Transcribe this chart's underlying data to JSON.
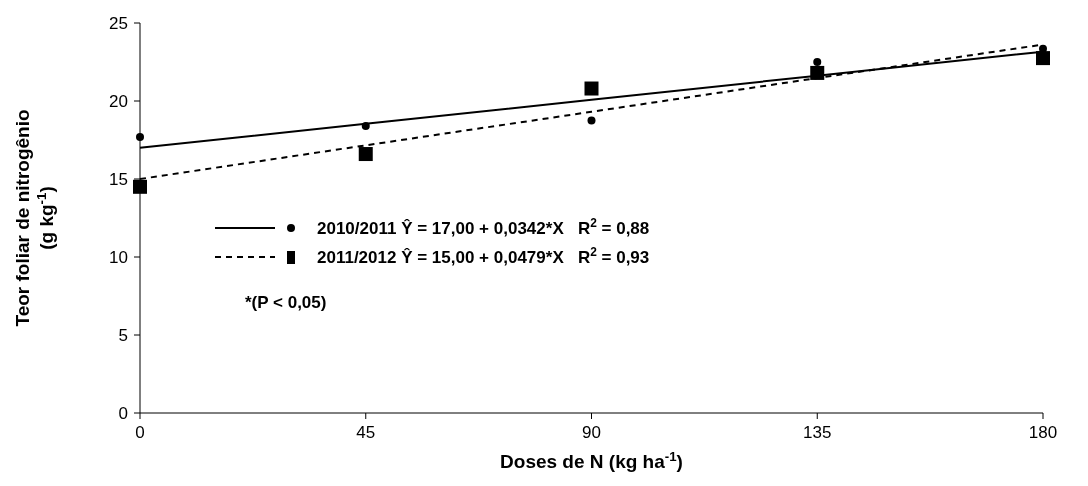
{
  "chart_data": {
    "type": "scatter",
    "xlabel": "Doses de N (kg ha$^{-1}$)",
    "ylabel": "Teor  foliar de nitrogênio\n(g kg$^{-1}$)",
    "xlim": [
      0,
      180
    ],
    "xticks": [
      0,
      45,
      90,
      135,
      180
    ],
    "ylim": [
      0,
      25
    ],
    "yticks": [
      0,
      5,
      10,
      15,
      20,
      25
    ],
    "grid": false,
    "legend": "left",
    "x": [
      0,
      45,
      90,
      135,
      180
    ],
    "series": [
      {
        "type": "scatter",
        "marker": "circle",
        "color": "#000000",
        "values": [
          17.7,
          18.4,
          18.75,
          22.5,
          23.35
        ]
      },
      {
        "type": "scatter",
        "marker": "square",
        "color": "#000000",
        "values": [
          14.5,
          16.6,
          20.8,
          21.8,
          22.75
        ]
      },
      {
        "type": "line",
        "name": "2010/2011 Ŷ = 17,00 + 0,0342*X   R$^{2}$ = 0,88",
        "marker": "none",
        "line_style": "solid",
        "color": "#000000",
        "values": [
          17,
          18.54,
          20.08,
          21.62,
          23.16
        ]
      },
      {
        "type": "line",
        "name": "2011/2012 Ŷ = 15,00 + 0,0479*X   R$^{2}$ = 0,93",
        "marker": "none",
        "line_style": "dashed",
        "color": "#000000",
        "values": [
          15,
          17.16,
          19.31,
          21.47,
          23.62
        ]
      }
    ],
    "annotations": [
      "*(P < 0,05)"
    ]
  }
}
